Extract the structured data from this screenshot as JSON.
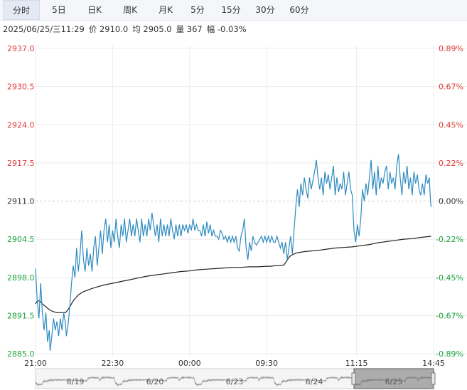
{
  "tabs": [
    "分时",
    "5日",
    "日K",
    "周K",
    "月K",
    "5分",
    "15分",
    "30分",
    "60分"
  ],
  "active_tab": 0,
  "info": {
    "datetime": "2025/06/25/三11:29",
    "price": "价 2910.0",
    "avg": "均 2905.0",
    "volume": "量 367",
    "change": "幅 -0.03%"
  },
  "colors": {
    "up": "#e03a3a",
    "down": "#1aa33a",
    "price_line": "#2e8bc0",
    "avg_line": "#222222"
  },
  "chart_data": {
    "type": "line",
    "yticks_left": [
      "2937.0",
      "2930.5",
      "2924.0",
      "2917.5",
      "2911.0",
      "2904.5",
      "2898.0",
      "2891.5",
      "2885.0"
    ],
    "yticks_right": [
      "0.89%",
      "0.67%",
      "0.45%",
      "0.22%",
      "0.00%",
      "-0.22%",
      "-0.45%",
      "-0.67%",
      "-0.89%"
    ],
    "ylim": [
      2885.0,
      2937.0
    ],
    "reference_price": 2911.0,
    "xticks": [
      "21:00",
      "22:30",
      "00:00",
      "09:30",
      "11:15",
      "14:45"
    ],
    "x_tick_index": [
      0,
      90,
      180,
      270,
      375,
      465
    ],
    "x_total": 465,
    "navigator_dates": [
      "6/19",
      "6/20",
      "6/23",
      "6/24",
      "6/25"
    ],
    "series": [
      {
        "name": "价",
        "points": [
          [
            0,
            2899.5
          ],
          [
            2,
            2894
          ],
          [
            4,
            2891
          ],
          [
            6,
            2897
          ],
          [
            8,
            2892
          ],
          [
            10,
            2889
          ],
          [
            12,
            2892
          ],
          [
            14,
            2887
          ],
          [
            16,
            2889
          ],
          [
            17,
            2885.5
          ],
          [
            19,
            2888
          ],
          [
            21,
            2891
          ],
          [
            23,
            2889
          ],
          [
            25,
            2890.5
          ],
          [
            27,
            2888
          ],
          [
            29,
            2891
          ],
          [
            31,
            2889
          ],
          [
            33,
            2892
          ],
          [
            35,
            2890
          ],
          [
            36,
            2888
          ],
          [
            38,
            2890
          ],
          [
            40,
            2893
          ],
          [
            42,
            2897
          ],
          [
            44,
            2900
          ],
          [
            46,
            2898
          ],
          [
            48,
            2903
          ],
          [
            50,
            2899
          ],
          [
            52,
            2902
          ],
          [
            54,
            2906
          ],
          [
            56,
            2901
          ],
          [
            58,
            2899
          ],
          [
            60,
            2903
          ],
          [
            62,
            2900
          ],
          [
            64,
            2902
          ],
          [
            66,
            2899
          ],
          [
            68,
            2903
          ],
          [
            70,
            2905
          ],
          [
            72,
            2900
          ],
          [
            74,
            2903
          ],
          [
            76,
            2906
          ],
          [
            78,
            2902
          ],
          [
            80,
            2906
          ],
          [
            82,
            2908
          ],
          [
            84,
            2904
          ],
          [
            86,
            2907
          ],
          [
            88,
            2903
          ],
          [
            90,
            2906
          ],
          [
            92,
            2904
          ],
          [
            94,
            2908
          ],
          [
            96,
            2905
          ],
          [
            98,
            2903
          ],
          [
            100,
            2907
          ],
          [
            102,
            2905
          ],
          [
            104,
            2908
          ],
          [
            106,
            2904
          ],
          [
            108,
            2906
          ],
          [
            110,
            2908
          ],
          [
            112,
            2905
          ],
          [
            114,
            2907
          ],
          [
            116,
            2905
          ],
          [
            118,
            2908
          ],
          [
            120,
            2906
          ],
          [
            122,
            2904
          ],
          [
            124,
            2908
          ],
          [
            126,
            2905
          ],
          [
            128,
            2907
          ],
          [
            130,
            2905
          ],
          [
            132,
            2908
          ],
          [
            134,
            2906
          ],
          [
            136,
            2909
          ],
          [
            138,
            2907
          ],
          [
            140,
            2905
          ],
          [
            142,
            2907
          ],
          [
            144,
            2904
          ],
          [
            146,
            2908
          ],
          [
            148,
            2905
          ],
          [
            150,
            2907
          ],
          [
            152,
            2905
          ],
          [
            154,
            2907
          ],
          [
            156,
            2905
          ],
          [
            158,
            2908
          ],
          [
            160,
            2906
          ],
          [
            162,
            2904.5
          ],
          [
            164,
            2907
          ],
          [
            166,
            2905
          ],
          [
            168,
            2907
          ],
          [
            170,
            2905
          ],
          [
            172,
            2907
          ],
          [
            174,
            2906
          ],
          [
            176,
            2907
          ],
          [
            178,
            2905.5
          ],
          [
            180,
            2907
          ],
          [
            182,
            2906
          ],
          [
            184,
            2908
          ],
          [
            186,
            2906
          ],
          [
            188,
            2907
          ],
          [
            190,
            2906
          ],
          [
            192,
            2906
          ],
          [
            194,
            2905
          ],
          [
            196,
            2907
          ],
          [
            198,
            2905
          ],
          [
            200,
            2907.5
          ],
          [
            202,
            2905.5
          ],
          [
            204,
            2907
          ],
          [
            206,
            2905
          ],
          [
            208,
            2906
          ],
          [
            210,
            2905
          ],
          [
            212,
            2905
          ],
          [
            214,
            2904.5
          ],
          [
            216,
            2906
          ],
          [
            218,
            2905.5
          ],
          [
            220,
            2904.5
          ],
          [
            222,
            2905
          ],
          [
            224,
            2904
          ],
          [
            226,
            2905
          ],
          [
            228,
            2904
          ],
          [
            230,
            2905
          ],
          [
            232,
            2904
          ],
          [
            234,
            2905
          ],
          [
            236,
            2903
          ],
          [
            238,
            2902.5
          ],
          [
            240,
            2905
          ],
          [
            242,
            2906
          ],
          [
            244,
            2908
          ],
          [
            246,
            2903
          ],
          [
            248,
            2901
          ],
          [
            250,
            2904
          ],
          [
            252,
            2902.5
          ],
          [
            254,
            2905
          ],
          [
            256,
            2904
          ],
          [
            258,
            2903.5
          ],
          [
            260,
            2904
          ],
          [
            262,
            2904.5
          ],
          [
            264,
            2905
          ],
          [
            266,
            2904
          ],
          [
            268,
            2905
          ],
          [
            270,
            2904
          ],
          [
            272,
            2905
          ],
          [
            274,
            2904
          ],
          [
            276,
            2905
          ],
          [
            278,
            2904
          ],
          [
            280,
            2904
          ],
          [
            282,
            2905
          ],
          [
            284,
            2904
          ],
          [
            286,
            2903
          ],
          [
            288,
            2904
          ],
          [
            290,
            2902
          ],
          [
            292,
            2904
          ],
          [
            294,
            2901
          ],
          [
            296,
            2903
          ],
          [
            298,
            2905
          ],
          [
            300,
            2902
          ],
          [
            302,
            2906
          ],
          [
            304,
            2910
          ],
          [
            306,
            2913
          ],
          [
            308,
            2910
          ],
          [
            310,
            2914
          ],
          [
            312,
            2912
          ],
          [
            314,
            2915
          ],
          [
            316,
            2913
          ],
          [
            318,
            2911.5
          ],
          [
            320,
            2915
          ],
          [
            322,
            2913
          ],
          [
            324,
            2914.5
          ],
          [
            326,
            2916
          ],
          [
            328,
            2918
          ],
          [
            330,
            2915
          ],
          [
            332,
            2913
          ],
          [
            334,
            2915
          ],
          [
            336,
            2912
          ],
          [
            338,
            2916
          ],
          [
            340,
            2914
          ],
          [
            342,
            2915.5
          ],
          [
            344,
            2913
          ],
          [
            346,
            2915
          ],
          [
            348,
            2917
          ],
          [
            350,
            2912
          ],
          [
            352,
            2915
          ],
          [
            354,
            2912.5
          ],
          [
            356,
            2914
          ],
          [
            358,
            2913
          ],
          [
            360,
            2916
          ],
          [
            362,
            2912
          ],
          [
            364,
            2914
          ],
          [
            366,
            2916
          ],
          [
            368,
            2913
          ],
          [
            370,
            2912
          ],
          [
            372,
            2906
          ],
          [
            374,
            2904
          ],
          [
            376,
            2907
          ],
          [
            378,
            2905
          ],
          [
            380,
            2908
          ],
          [
            382,
            2913
          ],
          [
            384,
            2911
          ],
          [
            386,
            2914
          ],
          [
            388,
            2912
          ],
          [
            390,
            2915
          ],
          [
            392,
            2918
          ],
          [
            394,
            2913
          ],
          [
            396,
            2916
          ],
          [
            398,
            2912
          ],
          [
            400,
            2917
          ],
          [
            402,
            2913
          ],
          [
            404,
            2915
          ],
          [
            406,
            2914
          ],
          [
            408,
            2916
          ],
          [
            410,
            2917
          ],
          [
            412,
            2913
          ],
          [
            414,
            2916
          ],
          [
            416,
            2914
          ],
          [
            418,
            2915
          ],
          [
            420,
            2913
          ],
          [
            422,
            2917
          ],
          [
            424,
            2919
          ],
          [
            426,
            2915
          ],
          [
            428,
            2912
          ],
          [
            430,
            2916
          ],
          [
            432,
            2914
          ],
          [
            434,
            2917
          ],
          [
            436,
            2913
          ],
          [
            438,
            2915
          ],
          [
            440,
            2912
          ],
          [
            442,
            2916
          ],
          [
            444,
            2914
          ],
          [
            446,
            2915.5
          ],
          [
            448,
            2913
          ],
          [
            450,
            2912
          ],
          [
            452,
            2914
          ],
          [
            454,
            2912
          ],
          [
            456,
            2915.5
          ],
          [
            458,
            2914
          ],
          [
            460,
            2915
          ],
          [
            461,
            2912
          ],
          [
            462,
            2910
          ]
        ]
      },
      {
        "name": "均",
        "points": [
          [
            0,
            2893.5
          ],
          [
            2,
            2894
          ],
          [
            5,
            2894
          ],
          [
            8,
            2893.5
          ],
          [
            12,
            2893
          ],
          [
            16,
            2892.5
          ],
          [
            20,
            2892.2
          ],
          [
            25,
            2892
          ],
          [
            30,
            2892
          ],
          [
            35,
            2892
          ],
          [
            38,
            2892.5
          ],
          [
            40,
            2893
          ],
          [
            42,
            2893.5
          ],
          [
            45,
            2894.2
          ],
          [
            50,
            2895
          ],
          [
            55,
            2895.5
          ],
          [
            60,
            2895.8
          ],
          [
            70,
            2896.3
          ],
          [
            80,
            2896.7
          ],
          [
            90,
            2897
          ],
          [
            100,
            2897.3
          ],
          [
            110,
            2897.6
          ],
          [
            120,
            2897.9
          ],
          [
            130,
            2898.2
          ],
          [
            140,
            2898.4
          ],
          [
            150,
            2898.6
          ],
          [
            160,
            2898.8
          ],
          [
            170,
            2899
          ],
          [
            180,
            2899.1
          ],
          [
            190,
            2899.3
          ],
          [
            200,
            2899.4
          ],
          [
            210,
            2899.5
          ],
          [
            220,
            2899.6
          ],
          [
            230,
            2899.7
          ],
          [
            240,
            2899.7
          ],
          [
            250,
            2899.8
          ],
          [
            260,
            2899.8
          ],
          [
            270,
            2899.9
          ],
          [
            275,
            2899.9
          ],
          [
            280,
            2900
          ],
          [
            285,
            2900
          ],
          [
            290,
            2900.1
          ],
          [
            292,
            2900.5
          ],
          [
            295,
            2901.2
          ],
          [
            298,
            2901.7
          ],
          [
            302,
            2902
          ],
          [
            306,
            2902.2
          ],
          [
            315,
            2902.4
          ],
          [
            330,
            2902.6
          ],
          [
            340,
            2902.8
          ],
          [
            350,
            2903
          ],
          [
            360,
            2903.1
          ],
          [
            370,
            2903.2
          ],
          [
            380,
            2903.4
          ],
          [
            390,
            2903.6
          ],
          [
            400,
            2903.9
          ],
          [
            405,
            2904
          ],
          [
            410,
            2904.1
          ],
          [
            420,
            2904.3
          ],
          [
            430,
            2904.5
          ],
          [
            440,
            2904.6
          ],
          [
            450,
            2904.8
          ],
          [
            462,
            2905
          ]
        ]
      }
    ]
  }
}
